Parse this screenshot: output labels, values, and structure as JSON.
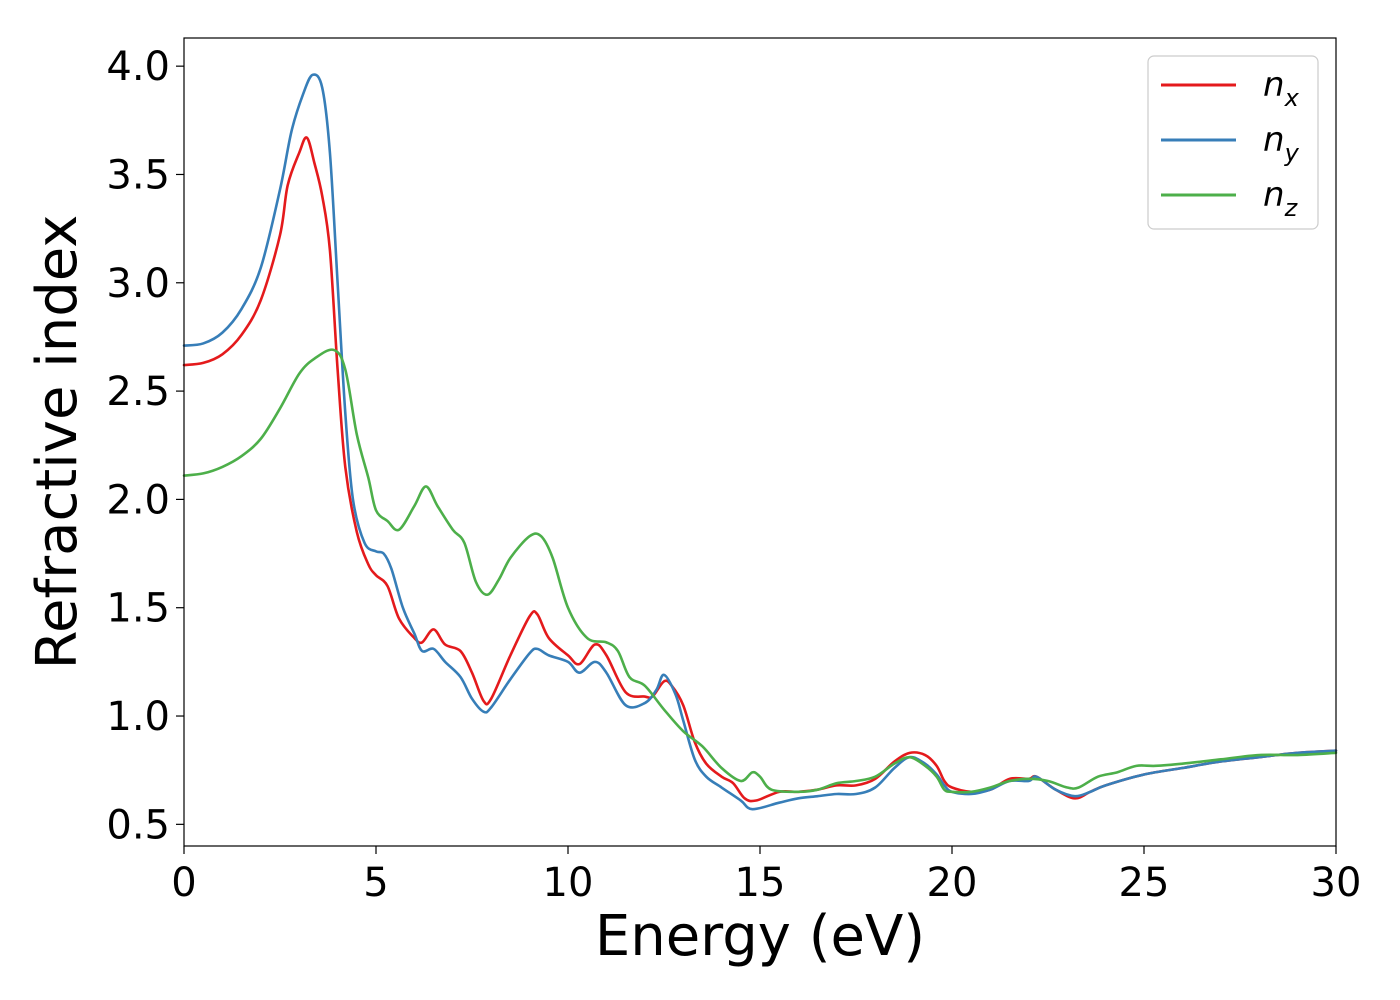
{
  "chart_data": {
    "type": "line",
    "title": "",
    "xlabel": "Energy (eV)",
    "ylabel": "Refractive index",
    "xlim": [
      0,
      30
    ],
    "ylim": [
      0.4,
      4.13
    ],
    "xticks": [
      0,
      5,
      10,
      15,
      20,
      25,
      30
    ],
    "xtick_labels": [
      "0",
      "5",
      "10",
      "15",
      "20",
      "25",
      "30"
    ],
    "yticks": [
      0.5,
      1.0,
      1.5,
      2.0,
      2.5,
      3.0,
      3.5,
      4.0
    ],
    "ytick_labels": [
      "0.5",
      "1.0",
      "1.5",
      "2.0",
      "2.5",
      "3.0",
      "3.5",
      "4.0"
    ],
    "grid": false,
    "legend_position": "top-right",
    "series": [
      {
        "name": "n_x",
        "label_base": "n",
        "label_sub": "x",
        "color": "#e41a1c",
        "points": [
          [
            0,
            2.62
          ],
          [
            0.5,
            2.63
          ],
          [
            1.0,
            2.67
          ],
          [
            1.5,
            2.76
          ],
          [
            2.0,
            2.92
          ],
          [
            2.5,
            3.22
          ],
          [
            2.7,
            3.45
          ],
          [
            3.0,
            3.6
          ],
          [
            3.2,
            3.67
          ],
          [
            3.4,
            3.55
          ],
          [
            3.6,
            3.4
          ],
          [
            3.8,
            3.15
          ],
          [
            4.0,
            2.6
          ],
          [
            4.2,
            2.15
          ],
          [
            4.5,
            1.85
          ],
          [
            4.8,
            1.7
          ],
          [
            5.0,
            1.65
          ],
          [
            5.3,
            1.6
          ],
          [
            5.6,
            1.45
          ],
          [
            6.0,
            1.36
          ],
          [
            6.2,
            1.34
          ],
          [
            6.5,
            1.4
          ],
          [
            6.8,
            1.33
          ],
          [
            7.2,
            1.3
          ],
          [
            7.5,
            1.2
          ],
          [
            7.8,
            1.07
          ],
          [
            8.0,
            1.08
          ],
          [
            8.5,
            1.28
          ],
          [
            9.0,
            1.46
          ],
          [
            9.2,
            1.47
          ],
          [
            9.5,
            1.36
          ],
          [
            10.0,
            1.28
          ],
          [
            10.3,
            1.24
          ],
          [
            10.7,
            1.33
          ],
          [
            11.0,
            1.28
          ],
          [
            11.5,
            1.11
          ],
          [
            12.0,
            1.09
          ],
          [
            12.2,
            1.09
          ],
          [
            12.5,
            1.16
          ],
          [
            12.7,
            1.14
          ],
          [
            13.0,
            1.05
          ],
          [
            13.3,
            0.88
          ],
          [
            13.6,
            0.78
          ],
          [
            14.0,
            0.72
          ],
          [
            14.3,
            0.69
          ],
          [
            14.6,
            0.62
          ],
          [
            14.9,
            0.61
          ],
          [
            15.5,
            0.65
          ],
          [
            16.0,
            0.65
          ],
          [
            16.5,
            0.66
          ],
          [
            17.0,
            0.68
          ],
          [
            17.5,
            0.68
          ],
          [
            18.0,
            0.71
          ],
          [
            18.5,
            0.79
          ],
          [
            18.9,
            0.83
          ],
          [
            19.3,
            0.82
          ],
          [
            19.6,
            0.77
          ],
          [
            19.8,
            0.7
          ],
          [
            20.0,
            0.67
          ],
          [
            20.5,
            0.65
          ],
          [
            21.0,
            0.66
          ],
          [
            21.5,
            0.71
          ],
          [
            22.0,
            0.71
          ],
          [
            22.2,
            0.72
          ],
          [
            22.7,
            0.66
          ],
          [
            23.2,
            0.62
          ],
          [
            23.6,
            0.65
          ],
          [
            24.0,
            0.68
          ],
          [
            25.0,
            0.73
          ],
          [
            26.0,
            0.76
          ],
          [
            27.0,
            0.79
          ],
          [
            28.0,
            0.81
          ],
          [
            29.0,
            0.83
          ],
          [
            30.0,
            0.84
          ]
        ]
      },
      {
        "name": "n_y",
        "label_base": "n",
        "label_sub": "y",
        "color": "#377eb8",
        "points": [
          [
            0,
            2.71
          ],
          [
            0.5,
            2.72
          ],
          [
            1.0,
            2.77
          ],
          [
            1.5,
            2.88
          ],
          [
            2.0,
            3.07
          ],
          [
            2.5,
            3.43
          ],
          [
            2.8,
            3.7
          ],
          [
            3.1,
            3.87
          ],
          [
            3.35,
            3.96
          ],
          [
            3.6,
            3.9
          ],
          [
            3.8,
            3.6
          ],
          [
            4.0,
            3.0
          ],
          [
            4.2,
            2.4
          ],
          [
            4.4,
            2.0
          ],
          [
            4.7,
            1.8
          ],
          [
            5.0,
            1.76
          ],
          [
            5.2,
            1.75
          ],
          [
            5.4,
            1.68
          ],
          [
            5.7,
            1.5
          ],
          [
            6.0,
            1.38
          ],
          [
            6.2,
            1.3
          ],
          [
            6.5,
            1.31
          ],
          [
            6.8,
            1.25
          ],
          [
            7.2,
            1.18
          ],
          [
            7.5,
            1.08
          ],
          [
            7.8,
            1.02
          ],
          [
            8.0,
            1.04
          ],
          [
            8.5,
            1.17
          ],
          [
            9.0,
            1.29
          ],
          [
            9.2,
            1.31
          ],
          [
            9.5,
            1.28
          ],
          [
            10.0,
            1.25
          ],
          [
            10.3,
            1.2
          ],
          [
            10.7,
            1.25
          ],
          [
            11.0,
            1.2
          ],
          [
            11.5,
            1.05
          ],
          [
            12.0,
            1.06
          ],
          [
            12.3,
            1.12
          ],
          [
            12.5,
            1.19
          ],
          [
            12.8,
            1.1
          ],
          [
            13.0,
            0.98
          ],
          [
            13.3,
            0.8
          ],
          [
            13.6,
            0.72
          ],
          [
            14.0,
            0.67
          ],
          [
            14.5,
            0.61
          ],
          [
            14.8,
            0.57
          ],
          [
            15.5,
            0.6
          ],
          [
            16.0,
            0.62
          ],
          [
            16.5,
            0.63
          ],
          [
            17.0,
            0.64
          ],
          [
            17.5,
            0.64
          ],
          [
            18.0,
            0.67
          ],
          [
            18.5,
            0.76
          ],
          [
            18.9,
            0.81
          ],
          [
            19.3,
            0.78
          ],
          [
            19.6,
            0.73
          ],
          [
            19.8,
            0.68
          ],
          [
            20.0,
            0.65
          ],
          [
            20.5,
            0.64
          ],
          [
            21.0,
            0.66
          ],
          [
            21.5,
            0.7
          ],
          [
            22.0,
            0.7
          ],
          [
            22.2,
            0.72
          ],
          [
            22.7,
            0.66
          ],
          [
            23.2,
            0.63
          ],
          [
            23.6,
            0.65
          ],
          [
            24.0,
            0.68
          ],
          [
            25.0,
            0.73
          ],
          [
            26.0,
            0.76
          ],
          [
            27.0,
            0.79
          ],
          [
            28.0,
            0.81
          ],
          [
            29.0,
            0.83
          ],
          [
            30.0,
            0.84
          ]
        ]
      },
      {
        "name": "n_z",
        "label_base": "n",
        "label_sub": "z",
        "color": "#4daf4a",
        "points": [
          [
            0,
            2.11
          ],
          [
            0.5,
            2.12
          ],
          [
            1.0,
            2.15
          ],
          [
            1.5,
            2.2
          ],
          [
            2.0,
            2.28
          ],
          [
            2.5,
            2.42
          ],
          [
            3.0,
            2.58
          ],
          [
            3.4,
            2.65
          ],
          [
            3.9,
            2.69
          ],
          [
            4.2,
            2.6
          ],
          [
            4.5,
            2.3
          ],
          [
            4.8,
            2.1
          ],
          [
            5.0,
            1.95
          ],
          [
            5.3,
            1.9
          ],
          [
            5.6,
            1.86
          ],
          [
            6.0,
            1.97
          ],
          [
            6.3,
            2.06
          ],
          [
            6.6,
            1.97
          ],
          [
            7.0,
            1.86
          ],
          [
            7.3,
            1.8
          ],
          [
            7.6,
            1.62
          ],
          [
            7.9,
            1.56
          ],
          [
            8.2,
            1.63
          ],
          [
            8.5,
            1.73
          ],
          [
            9.0,
            1.83
          ],
          [
            9.3,
            1.83
          ],
          [
            9.6,
            1.73
          ],
          [
            10.0,
            1.5
          ],
          [
            10.5,
            1.36
          ],
          [
            11.0,
            1.34
          ],
          [
            11.3,
            1.3
          ],
          [
            11.6,
            1.18
          ],
          [
            12.0,
            1.14
          ],
          [
            12.5,
            1.03
          ],
          [
            13.0,
            0.93
          ],
          [
            13.5,
            0.86
          ],
          [
            14.0,
            0.76
          ],
          [
            14.5,
            0.7
          ],
          [
            14.8,
            0.74
          ],
          [
            15.0,
            0.72
          ],
          [
            15.3,
            0.66
          ],
          [
            16.0,
            0.65
          ],
          [
            16.5,
            0.66
          ],
          [
            17.0,
            0.69
          ],
          [
            17.5,
            0.7
          ],
          [
            18.0,
            0.72
          ],
          [
            18.5,
            0.78
          ],
          [
            18.9,
            0.81
          ],
          [
            19.3,
            0.77
          ],
          [
            19.6,
            0.72
          ],
          [
            19.8,
            0.66
          ],
          [
            20.0,
            0.65
          ],
          [
            20.5,
            0.65
          ],
          [
            21.0,
            0.67
          ],
          [
            21.5,
            0.7
          ],
          [
            22.0,
            0.71
          ],
          [
            22.5,
            0.7
          ],
          [
            23.0,
            0.67
          ],
          [
            23.3,
            0.67
          ],
          [
            23.8,
            0.72
          ],
          [
            24.3,
            0.74
          ],
          [
            24.8,
            0.77
          ],
          [
            25.3,
            0.77
          ],
          [
            26.0,
            0.78
          ],
          [
            27.0,
            0.8
          ],
          [
            28.0,
            0.82
          ],
          [
            29.0,
            0.82
          ],
          [
            30.0,
            0.83
          ]
        ]
      }
    ]
  }
}
